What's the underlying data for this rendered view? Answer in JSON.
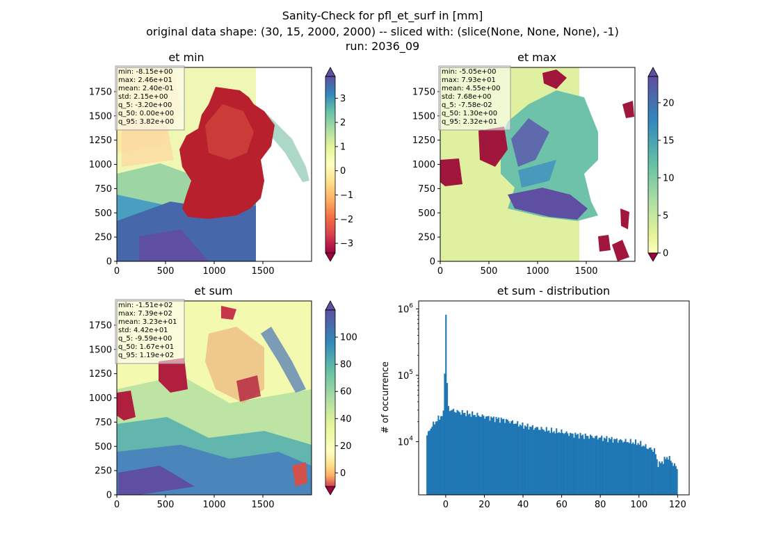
{
  "figure": {
    "title_lines": [
      "Sanity-Check for pfl_et_surf in [mm]",
      "original data shape: (30, 15, 2000, 2000) -- sliced with: (slice(None, None, None), -1)",
      "run: 2036_09"
    ]
  },
  "chart_data": [
    {
      "type": "heatmap",
      "title": "et min",
      "x_ticks": [
        0,
        500,
        1000,
        1500
      ],
      "y_ticks": [
        0,
        250,
        500,
        750,
        1000,
        1250,
        1500,
        1750
      ],
      "xlim": [
        0,
        2000
      ],
      "ylim": [
        0,
        2000
      ],
      "colormap": "Spectral",
      "colorbar": {
        "range": [
          -3.4,
          3.9
        ],
        "ticks": [
          -3,
          -2,
          -1,
          0,
          1,
          2,
          3
        ],
        "tick_labels": [
          "−3",
          "−2",
          "−1",
          "0",
          "1",
          "2",
          "3"
        ],
        "extend": "both"
      },
      "stats": [
        "min: -8.15e+00",
        "max: 2.46e+01",
        "mean: 2.40e-01",
        "std: 2.15e+00",
        "q_5: -3.20e+00",
        "q_50: 0.00e+00",
        "q_95: 3.82e+00"
      ]
    },
    {
      "type": "heatmap",
      "title": "et max",
      "x_ticks": [
        0,
        500,
        1000,
        1500
      ],
      "y_ticks": [
        0,
        250,
        500,
        750,
        1000,
        1250,
        1500,
        1750
      ],
      "xlim": [
        0,
        2000
      ],
      "ylim": [
        0,
        2000
      ],
      "colormap": "Spectral",
      "colorbar": {
        "range": [
          0,
          23.5
        ],
        "ticks": [
          0,
          5,
          10,
          15,
          20
        ],
        "tick_labels": [
          "0",
          "5",
          "10",
          "15",
          "20"
        ],
        "extend": "both"
      },
      "stats": [
        "min: -5.05e+00",
        "max: 7.93e+01",
        "mean: 4.55e+00",
        "std: 7.68e+00",
        "q_5: -7.58e-02",
        "q_50: 1.30e+00",
        "q_95: 2.32e+01"
      ]
    },
    {
      "type": "heatmap",
      "title": "et sum",
      "x_ticks": [
        0,
        500,
        1000,
        1500
      ],
      "y_ticks": [
        0,
        250,
        500,
        750,
        1000,
        1250,
        1500,
        1750
      ],
      "xlim": [
        0,
        2000
      ],
      "ylim": [
        0,
        2000
      ],
      "colormap": "Spectral",
      "colorbar": {
        "range": [
          -10,
          120
        ],
        "ticks": [
          0,
          20,
          40,
          60,
          80,
          100
        ],
        "tick_labels": [
          "0",
          "20",
          "40",
          "60",
          "80",
          "100"
        ],
        "extend": "both"
      },
      "stats": [
        "min: -1.51e+02",
        "max: 7.39e+02",
        "mean: 3.23e+01",
        "std: 4.42e+01",
        "q_5: -9.59e+00",
        "q_50: 1.67e+01",
        "q_95: 1.19e+02"
      ]
    },
    {
      "type": "bar",
      "title": "et sum - distribution",
      "ylabel": "# of occurrence",
      "xlabel": "",
      "y_scale": "log",
      "xlim": [
        -14,
        126
      ],
      "ylim_log10": [
        3.2,
        6.12
      ],
      "x_ticks": [
        0,
        20,
        40,
        60,
        80,
        100,
        120
      ],
      "y_ticks": [
        {
          "value": 10000,
          "base": "10",
          "exp": "4"
        },
        {
          "value": 100000,
          "base": "10",
          "exp": "5"
        },
        {
          "value": 1000000,
          "base": "10",
          "exp": "6"
        }
      ],
      "color": "#1f77b4",
      "bins": {
        "start": -10,
        "end": 120,
        "count": 200
      },
      "anchors": [
        [
          -10,
          12000
        ],
        [
          -9,
          13500
        ],
        [
          -8,
          16000
        ],
        [
          -6,
          19000
        ],
        [
          -4,
          22000
        ],
        [
          -2,
          25000
        ],
        [
          -1,
          27000
        ],
        [
          0,
          820000
        ],
        [
          1,
          32000
        ],
        [
          3,
          30000
        ],
        [
          6,
          28500
        ],
        [
          10,
          27000
        ],
        [
          15,
          25500
        ],
        [
          20,
          24000
        ],
        [
          25,
          22500
        ],
        [
          30,
          21500
        ],
        [
          35,
          19500
        ],
        [
          40,
          17500
        ],
        [
          45,
          16500
        ],
        [
          50,
          15500
        ],
        [
          55,
          14500
        ],
        [
          60,
          14000
        ],
        [
          65,
          13000
        ],
        [
          70,
          12500
        ],
        [
          75,
          12000
        ],
        [
          80,
          11500
        ],
        [
          85,
          11000
        ],
        [
          90,
          10500
        ],
        [
          95,
          10000
        ],
        [
          100,
          9500
        ],
        [
          105,
          8000
        ],
        [
          108,
          7500
        ],
        [
          110,
          4500
        ],
        [
          112,
          5000
        ],
        [
          115,
          6000
        ],
        [
          118,
          4500
        ],
        [
          120,
          4000
        ]
      ]
    }
  ]
}
